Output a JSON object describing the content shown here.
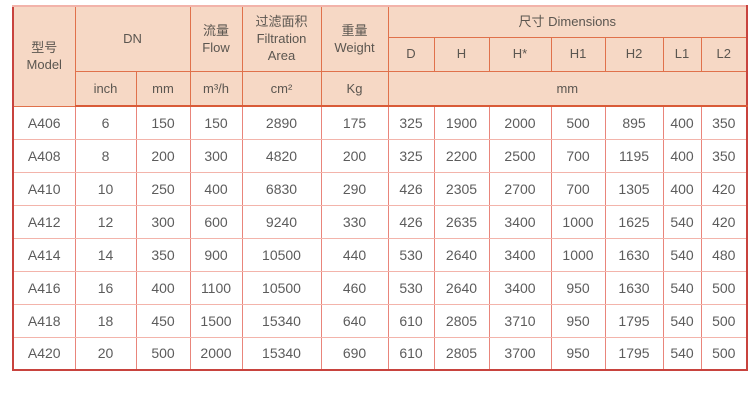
{
  "table": {
    "header": {
      "model": {
        "zh": "型号",
        "en": "Model"
      },
      "dn": "DN",
      "flow": {
        "zh": "流量",
        "en": "Flow"
      },
      "filtration": {
        "zh": "过滤面积",
        "en1": "Filtration",
        "en2": "Area"
      },
      "weight": {
        "zh": "重量",
        "en": "Weight"
      },
      "dimensions": "尺寸 Dimensions",
      "dim_cols": [
        "D",
        "H",
        "H*",
        "H1",
        "H2",
        "L1",
        "L2"
      ],
      "units": {
        "inch": "inch",
        "mm": "mm",
        "flow": "m³/h",
        "area": "cm²",
        "weight": "Kg",
        "dims_mm": "mm"
      }
    },
    "rows": [
      [
        "A406",
        "6",
        "150",
        "150",
        "2890",
        "175",
        "325",
        "1900",
        "2000",
        "500",
        "895",
        "400",
        "350"
      ],
      [
        "A408",
        "8",
        "200",
        "300",
        "4820",
        "200",
        "325",
        "2200",
        "2500",
        "700",
        "1195",
        "400",
        "350"
      ],
      [
        "A410",
        "10",
        "250",
        "400",
        "6830",
        "290",
        "426",
        "2305",
        "2700",
        "700",
        "1305",
        "400",
        "420"
      ],
      [
        "A412",
        "12",
        "300",
        "600",
        "9240",
        "330",
        "426",
        "2635",
        "3400",
        "1000",
        "1625",
        "540",
        "420"
      ],
      [
        "A414",
        "14",
        "350",
        "900",
        "10500",
        "440",
        "530",
        "2640",
        "3400",
        "1000",
        "1630",
        "540",
        "480"
      ],
      [
        "A416",
        "16",
        "400",
        "1100",
        "10500",
        "460",
        "530",
        "2640",
        "3400",
        "950",
        "1630",
        "540",
        "500"
      ],
      [
        "A418",
        "18",
        "450",
        "1500",
        "15340",
        "640",
        "610",
        "2805",
        "3710",
        "950",
        "1795",
        "540",
        "500"
      ],
      [
        "A420",
        "20",
        "500",
        "2000",
        "15340",
        "690",
        "610",
        "2805",
        "3700",
        "950",
        "1795",
        "540",
        "500"
      ]
    ]
  },
  "colors": {
    "header_bg": "#f6d8c5",
    "header_grid_line": "#e0714b",
    "outer_border": "#c8433e",
    "top_border": "#f2b3aa",
    "header_bottom_line": "#d95b38",
    "body_grid_vertical": "#e9857b",
    "body_grid_horizontal": "#f3b4ab",
    "header_text": "#5b5650",
    "cell_text": "#5c5c5c"
  }
}
